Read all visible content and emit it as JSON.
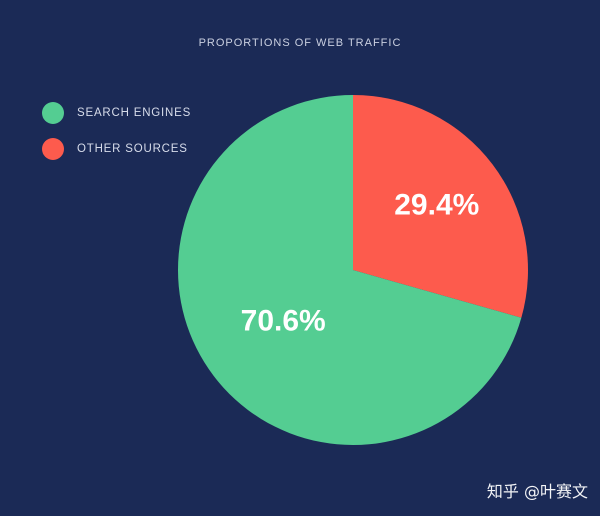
{
  "chart_data": {
    "type": "pie",
    "title": "PROPORTIONS OF WEB TRAFFIC",
    "slices": [
      {
        "label": "OTHER SOURCES",
        "value": 29.4,
        "display": "29.4%",
        "color": "#fd5b4d"
      },
      {
        "label": "SEARCH ENGINES",
        "value": 70.6,
        "display": "70.6%",
        "color": "#54cd92"
      }
    ],
    "legend_order": [
      "SEARCH ENGINES",
      "OTHER SOURCES"
    ],
    "legend_position": "top-left"
  },
  "legend": [
    {
      "label": "SEARCH ENGINES",
      "color": "#54cd92"
    },
    {
      "label": "OTHER SOURCES",
      "color": "#fd5b4d"
    }
  ],
  "watermark": "知乎 @叶赛文"
}
